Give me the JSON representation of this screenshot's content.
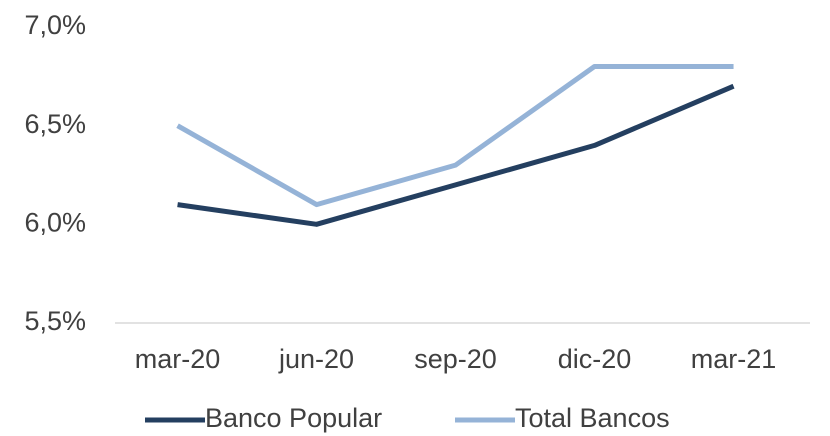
{
  "chart_data": {
    "type": "line",
    "categories": [
      "mar-20",
      "jun-20",
      "sep-20",
      "dic-20",
      "mar-21"
    ],
    "series": [
      {
        "name": "Banco Popular",
        "color": "#243f60",
        "values": [
          6.1,
          6.0,
          6.2,
          6.4,
          6.7
        ]
      },
      {
        "name": "Total Bancos",
        "color": "#95b3d7",
        "values": [
          6.5,
          6.1,
          6.3,
          6.8,
          6.8
        ]
      }
    ],
    "ylim": [
      5.5,
      7.0
    ],
    "yticks": [
      {
        "value": 5.5,
        "label": "5,5%"
      },
      {
        "value": 6.0,
        "label": "6,0%"
      },
      {
        "value": 6.5,
        "label": "6,5%"
      },
      {
        "value": 7.0,
        "label": "7,0%"
      }
    ],
    "legend": "bottom"
  }
}
